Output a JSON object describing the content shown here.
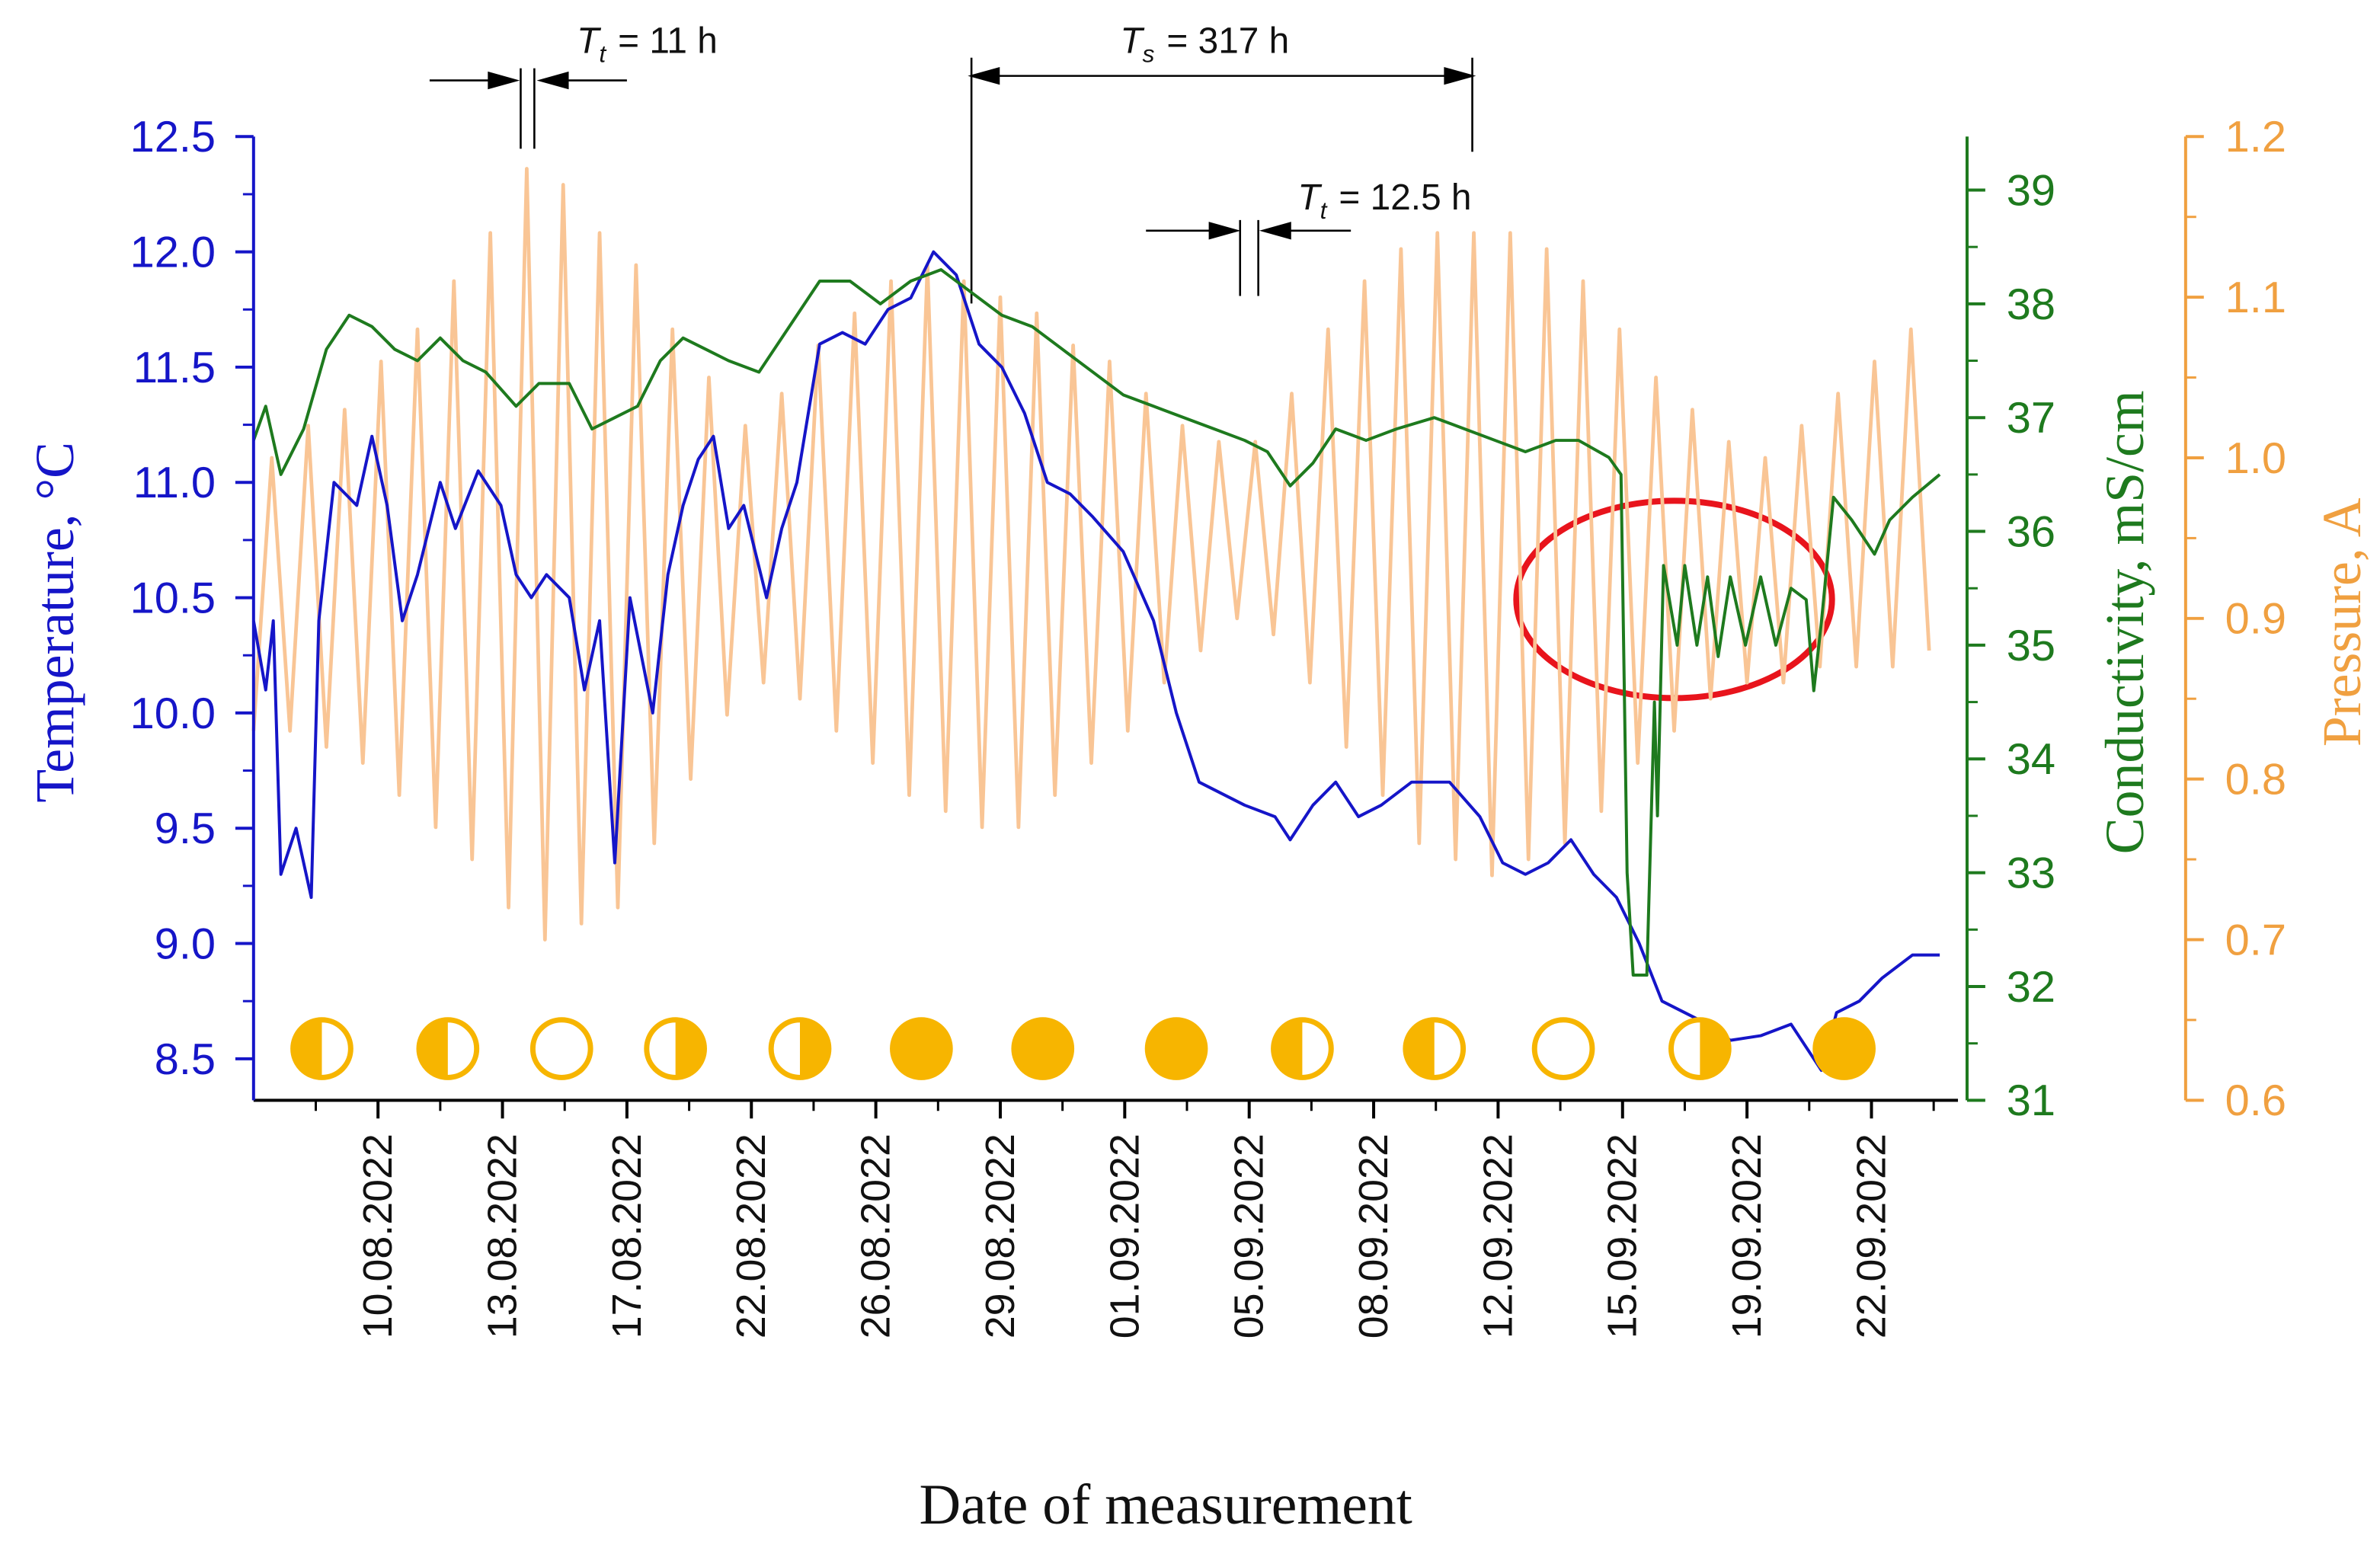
{
  "chart_data": {
    "type": "line",
    "xlabel": "Date of measurement",
    "ylabel": "Temperature, °C",
    "y2label": "Conductivity, mS/cm",
    "y3label": "Pressure, A",
    "xlim": [
      0,
      112.3
    ],
    "xticks": [
      {
        "value": 8.2,
        "label": "10.08.2022"
      },
      {
        "value": 16.4,
        "label": "13.08.2022"
      },
      {
        "value": 24.6,
        "label": "17.08.2022"
      },
      {
        "value": 32.8,
        "label": "22.08.2022"
      },
      {
        "value": 41,
        "label": "26.08.2022"
      },
      {
        "value": 49.2,
        "label": "29.08.2022"
      },
      {
        "value": 57.4,
        "label": "01.09.2022"
      },
      {
        "value": 65.6,
        "label": "05.09.2022"
      },
      {
        "value": 73.8,
        "label": "08.09.2022"
      },
      {
        "value": 82,
        "label": "12.09.2022"
      },
      {
        "value": 90.2,
        "label": "15.09.2022"
      },
      {
        "value": 98.4,
        "label": "19.09.2022"
      },
      {
        "value": 106.6,
        "label": "22.09.2022"
      }
    ],
    "ylim": [
      8.32,
      12.5
    ],
    "yticks": [
      8.5,
      {
        "value": 9,
        "label": "9.0"
      },
      9.5,
      {
        "value": 10,
        "label": "10.0"
      },
      10.5,
      {
        "value": 11,
        "label": "11.0"
      },
      11.5,
      {
        "value": 12,
        "label": "12.0"
      },
      12.5
    ],
    "y2lim": [
      31,
      39.47
    ],
    "y2ticks": [
      31,
      32,
      33,
      34,
      35,
      36,
      37,
      38,
      39
    ],
    "y3lim": [
      0.6,
      1.2
    ],
    "y3ticks": [
      0.6,
      0.7,
      0.8,
      0.9,
      {
        "value": 1,
        "label": "1.0"
      },
      1.1,
      1.2
    ],
    "annotations": [
      {
        "symbol": "T",
        "subscript": "t",
        "text": "= 11 h"
      },
      {
        "symbol": "T",
        "subscript": "s",
        "text": "= 317 h"
      },
      {
        "symbol": "T",
        "subscript": "t",
        "text": "= 12.5 h"
      }
    ],
    "series": [
      {
        "color": "#f9c595",
        "axis": "y3",
        "x": [
          0,
          1.2,
          2.4,
          3.6,
          4.8,
          6,
          7.2,
          8.4,
          9.6,
          10.8,
          12,
          13.2,
          14.4,
          15.6,
          16.8,
          18,
          19.2,
          20.4,
          21.6,
          22.8,
          24,
          25.2,
          26.4,
          27.6,
          28.8,
          30,
          31.2,
          32.4,
          33.6,
          34.8,
          36,
          37.2,
          38.4,
          39.6,
          40.8,
          42,
          43.2,
          44.4,
          45.6,
          46.8,
          48,
          49.2,
          50.4,
          51.6,
          52.8,
          54,
          55.2,
          56.4,
          57.6,
          58.8,
          60,
          61.2,
          62.4,
          63.6,
          64.8,
          66,
          67.2,
          68.4,
          69.6,
          70.8,
          72,
          73.2,
          74.4,
          75.6,
          76.8,
          78,
          79.2,
          80.4,
          81.6,
          82.8,
          84,
          85.2,
          86.4,
          87.6,
          88.8,
          90,
          91.2,
          92.4,
          93.6,
          94.8,
          96,
          97.2,
          98.4,
          99.6,
          100.8,
          102,
          103.2,
          104.4,
          105.6,
          106.8,
          108,
          109.2,
          110.4
        ],
        "values": [
          0.83,
          1.0,
          0.83,
          1.02,
          0.82,
          1.03,
          0.81,
          1.06,
          0.79,
          1.08,
          0.77,
          1.11,
          0.75,
          1.14,
          0.72,
          1.18,
          0.7,
          1.17,
          0.71,
          1.14,
          0.72,
          1.12,
          0.76,
          1.08,
          0.8,
          1.05,
          0.84,
          1.02,
          0.86,
          1.04,
          0.85,
          1.07,
          0.83,
          1.09,
          0.81,
          1.11,
          0.79,
          1.12,
          0.78,
          1.11,
          0.77,
          1.1,
          0.77,
          1.09,
          0.79,
          1.07,
          0.81,
          1.06,
          0.83,
          1.04,
          0.86,
          1.02,
          0.88,
          1.01,
          0.9,
          1.01,
          0.89,
          1.04,
          0.86,
          1.08,
          0.82,
          1.11,
          0.79,
          1.13,
          0.76,
          1.14,
          0.75,
          1.14,
          0.74,
          1.14,
          0.75,
          1.13,
          0.76,
          1.11,
          0.78,
          1.08,
          0.81,
          1.05,
          0.83,
          1.03,
          0.85,
          1.01,
          0.86,
          1.0,
          0.86,
          1.02,
          0.87,
          1.04,
          0.87,
          1.06,
          0.87,
          1.08,
          0.88
        ]
      },
      {
        "color": "#1515c8",
        "axis": "y",
        "x": [
          0,
          0.8,
          1.3,
          1.8,
          2.8,
          3.8,
          4.3,
          5.3,
          6.8,
          7.8,
          8.8,
          9.8,
          10.8,
          12.3,
          13.3,
          14.8,
          16.3,
          17.3,
          18.3,
          19.3,
          20.8,
          21.8,
          22.8,
          23.8,
          24.8,
          26.3,
          27.3,
          28.3,
          29.3,
          30.3,
          31.3,
          32.3,
          33.8,
          34.8,
          35.8,
          37.3,
          38.8,
          40.3,
          41.8,
          43.3,
          44.8,
          46.3,
          47.8,
          49.3,
          50.8,
          52.3,
          53.8,
          55.3,
          57.3,
          59.3,
          60.8,
          62.3,
          63.8,
          65.3,
          67.3,
          68.3,
          69.8,
          71.3,
          72.8,
          74.3,
          76.3,
          78.8,
          80.8,
          82.3,
          83.8,
          85.3,
          86.8,
          88.3,
          89.8,
          91.3,
          92.8,
          94.3,
          95.8,
          97.3,
          99.3,
          101.3,
          103.3,
          104.3,
          105.8,
          107.3,
          109.3,
          111.1
        ],
        "values": [
          10.4,
          10.1,
          10.4,
          9.3,
          9.5,
          9.2,
          10.4,
          11.0,
          10.9,
          11.2,
          10.9,
          10.4,
          10.6,
          11.0,
          10.8,
          11.05,
          10.9,
          10.6,
          10.5,
          10.6,
          10.5,
          10.1,
          10.4,
          9.35,
          10.5,
          10.0,
          10.6,
          10.9,
          11.1,
          11.2,
          10.8,
          10.9,
          10.5,
          10.8,
          11.0,
          11.6,
          11.65,
          11.6,
          11.75,
          11.8,
          12.0,
          11.9,
          11.6,
          11.5,
          11.3,
          11.0,
          10.95,
          10.85,
          10.7,
          10.4,
          10.0,
          9.7,
          9.65,
          9.6,
          9.55,
          9.45,
          9.6,
          9.7,
          9.55,
          9.6,
          9.7,
          9.7,
          9.55,
          9.35,
          9.3,
          9.35,
          9.45,
          9.3,
          9.2,
          9.0,
          8.75,
          8.7,
          8.65,
          8.58,
          8.6,
          8.65,
          8.45,
          8.7,
          8.75,
          8.85,
          8.95,
          8.95
        ]
      },
      {
        "color": "#1e7a1e",
        "axis": "y2",
        "x": [
          0,
          0.8,
          1.8,
          3.3,
          4.8,
          6.3,
          7.8,
          9.3,
          10.8,
          12.3,
          13.8,
          15.3,
          17.3,
          18.8,
          20.8,
          22.3,
          23.8,
          25.3,
          26.8,
          28.3,
          29.8,
          31.3,
          33.3,
          35.3,
          37.3,
          39.3,
          41.3,
          43.3,
          45.3,
          47.3,
          49.3,
          51.3,
          53.3,
          55.3,
          57.3,
          59.3,
          61.3,
          63.3,
          65.3,
          66.8,
          68.3,
          69.8,
          71.3,
          73.3,
          75.3,
          77.8,
          79.8,
          81.8,
          83.8,
          85.8,
          87.3,
          89.3,
          90.1,
          90.5,
          90.9,
          91.8,
          92.3,
          92.5,
          92.9,
          93.8,
          94.3,
          95.1,
          95.8,
          96.5,
          97.3,
          98.3,
          99.3,
          100.3,
          101.3,
          102.3,
          102.8,
          103.3,
          104.1,
          105.3,
          106.8,
          107.8,
          109.3,
          111.1
        ],
        "values": [
          36.8,
          37.1,
          36.5,
          36.9,
          37.6,
          37.9,
          37.8,
          37.6,
          37.5,
          37.7,
          37.5,
          37.4,
          37.1,
          37.3,
          37.3,
          36.9,
          37.0,
          37.1,
          37.5,
          37.7,
          37.6,
          37.5,
          37.4,
          37.8,
          38.2,
          38.2,
          38.0,
          38.2,
          38.3,
          38.1,
          37.9,
          37.8,
          37.6,
          37.4,
          37.2,
          37.1,
          37.0,
          36.9,
          36.8,
          36.7,
          36.4,
          36.6,
          36.9,
          36.8,
          36.9,
          37.0,
          36.9,
          36.8,
          36.7,
          36.8,
          36.8,
          36.65,
          36.5,
          33.0,
          32.1,
          32.1,
          34.5,
          33.5,
          35.7,
          35.0,
          35.7,
          35.0,
          35.6,
          34.9,
          35.6,
          35.0,
          35.6,
          35.0,
          35.5,
          35.4,
          34.6,
          35.2,
          36.3,
          36.1,
          35.8,
          36.1,
          36.3,
          36.5
        ]
      }
    ]
  }
}
